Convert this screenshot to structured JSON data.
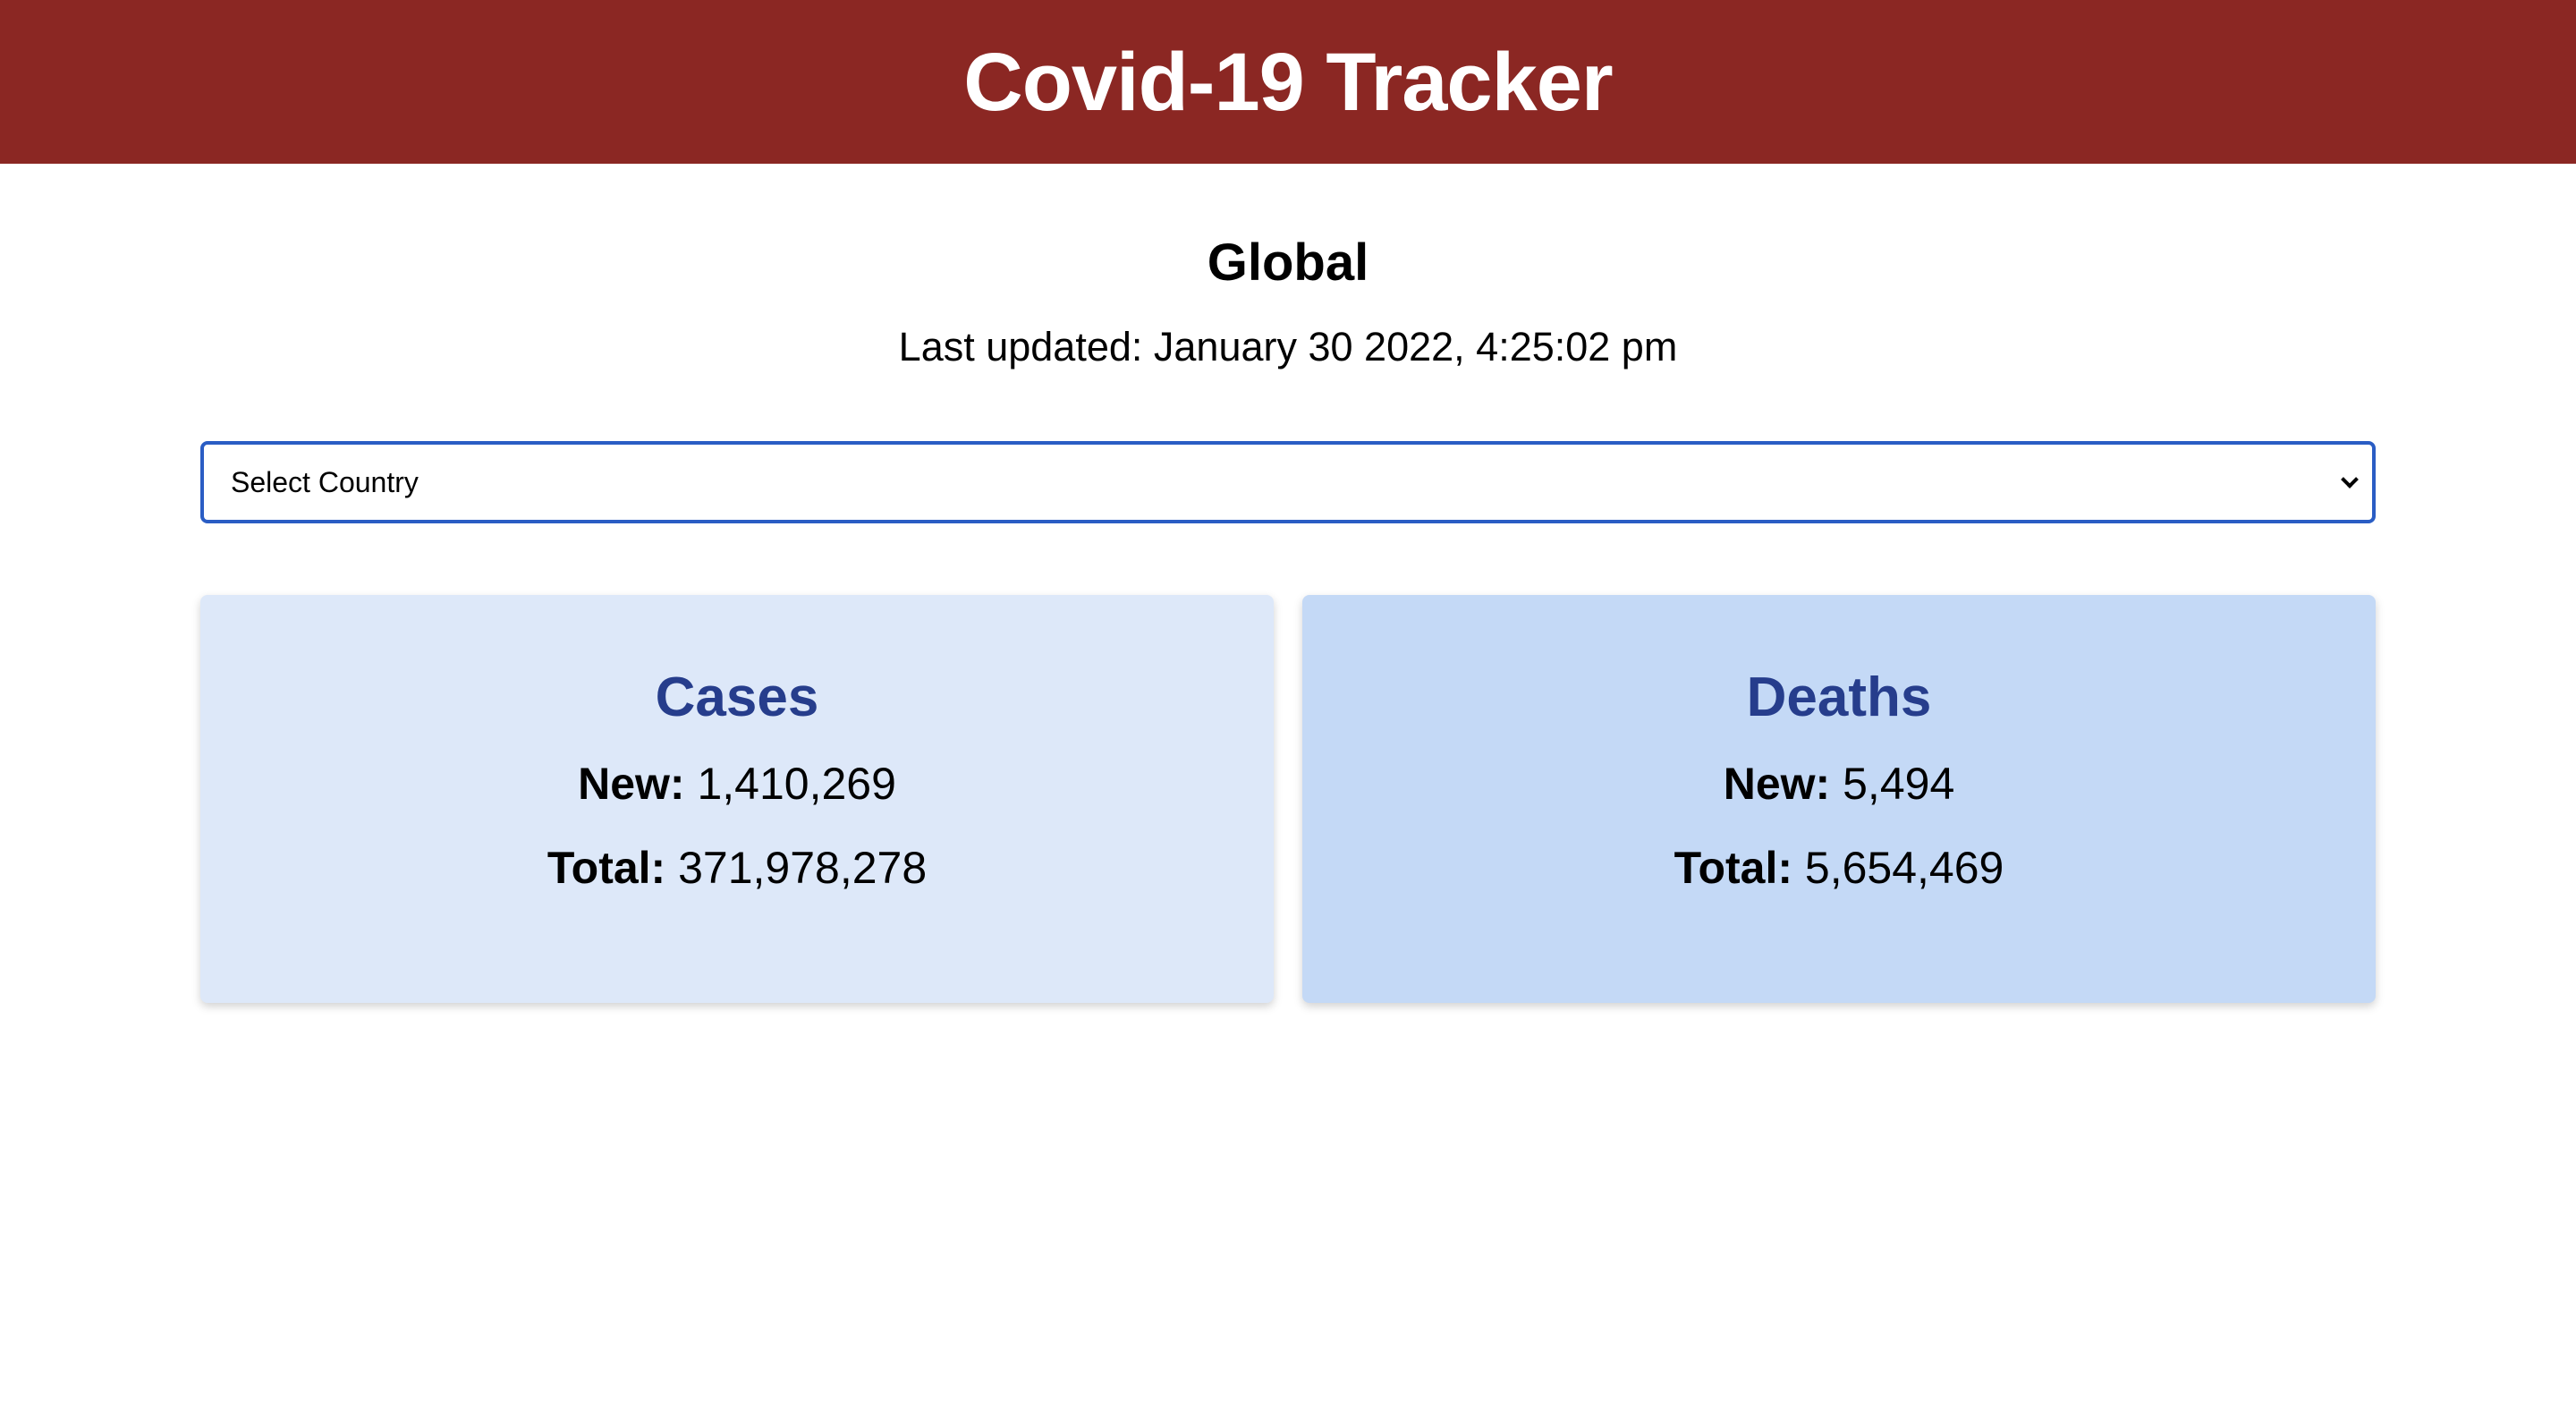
{
  "header": {
    "title": "Covid-19 Tracker"
  },
  "region": {
    "title": "Global",
    "last_updated": "Last updated: January 30 2022, 4:25:02 pm"
  },
  "country_select": {
    "selected": "Select Country",
    "icon": "chevron-down-icon"
  },
  "cards": {
    "cases": {
      "title": "Cases",
      "new_label": "New:",
      "new_value": "1,410,269",
      "total_label": "Total:",
      "total_value": "371,978,278"
    },
    "deaths": {
      "title": "Deaths",
      "new_label": "New:",
      "new_value": "5,494",
      "total_label": "Total:",
      "total_value": "5,654,469"
    }
  },
  "colors": {
    "header_bg": "#8b2723",
    "cases_card_bg": "#dde8f9",
    "deaths_card_bg": "#c4d9f6",
    "card_title": "#263d8c",
    "select_border": "#2a5dc4"
  }
}
